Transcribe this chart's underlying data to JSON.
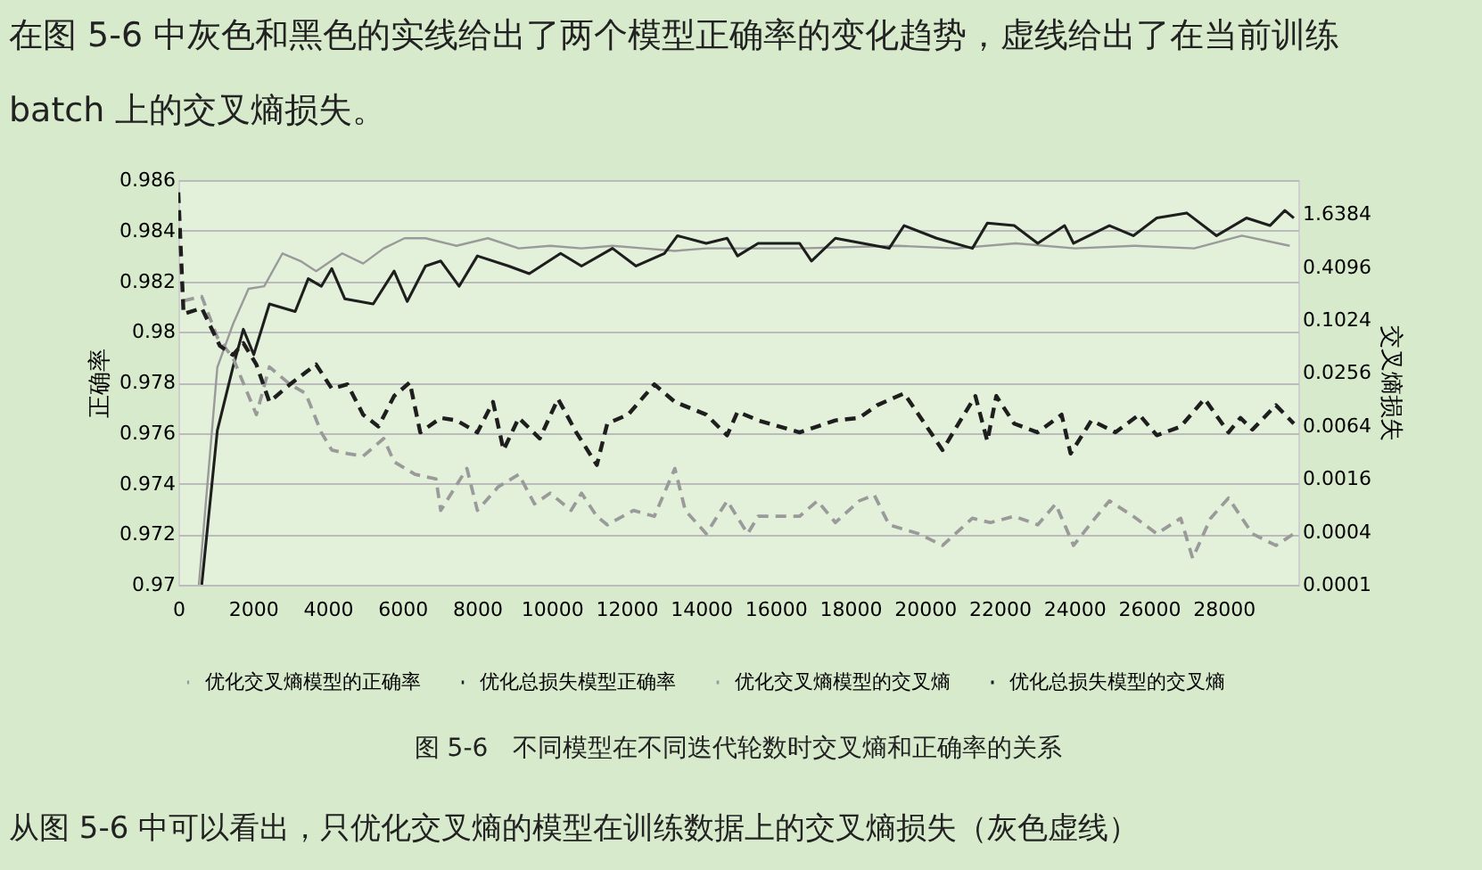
{
  "chart_data": {
    "type": "line",
    "title": "图 5-6　不同模型在不同迭代轮数时交叉熵和正确率的关系",
    "ylabel": "正确率",
    "y2label": "交叉熵损失",
    "annotations": [
      "在图 5-6 中灰色和黑色的实线给出了两个模型正确率的变化趋势，虚线给出了在当前训练 batch 上的交叉熵损失。",
      "从图 5-6 中可以看出，只优化交叉熵的模型在训练数据上的交叉熵损失（灰色虚线）"
    ],
    "xlim": [
      0,
      30000
    ],
    "xticks": [
      0,
      2000,
      4000,
      6000,
      8000,
      10000,
      12000,
      14000,
      16000,
      18000,
      20000,
      22000,
      24000,
      26000,
      28000
    ],
    "ylim": [
      0.97,
      0.986
    ],
    "yticks": [
      0.97,
      0.972,
      0.974,
      0.976,
      0.978,
      0.98,
      0.982,
      0.984,
      0.986
    ],
    "y2lim": [
      0.0001,
      4
    ],
    "y2ticks": [
      0.0001,
      0.0004,
      0.0016,
      0.0064,
      0.0256,
      0.1024,
      0.4096,
      1.6384
    ],
    "log": "y2",
    "grid": "y",
    "legend": "bottom",
    "series": [
      {
        "name": "优化交叉熵模型的正确率",
        "color": "#9a9a9a",
        "line_style": "solid",
        "x": [
          550,
          1045,
          1463,
          1880,
          2300,
          2790,
          3270,
          3690,
          4390,
          4950,
          5500,
          6060,
          6620,
          7450,
          8290,
          9120,
          9960,
          10800,
          11630,
          12470,
          13300,
          14140,
          14980,
          16640,
          19280,
          20830,
          22430,
          24020,
          25620,
          27210,
          28490,
          29770
        ],
        "values": [
          0.97,
          0.9786,
          0.9803,
          0.9817,
          0.9818,
          0.9831,
          0.9828,
          0.9824,
          0.9831,
          0.9827,
          0.9833,
          0.9837,
          0.9837,
          0.9834,
          0.9837,
          0.9833,
          0.9834,
          0.9833,
          0.9834,
          0.9833,
          0.9832,
          0.9833,
          0.9833,
          0.9833,
          0.9834,
          0.9833,
          0.9835,
          0.9833,
          0.9834,
          0.9833,
          0.9838,
          0.9834
        ]
      },
      {
        "name": "优化总损失模型正确率",
        "color": "#1e1e1e",
        "line_style": "solid",
        "x": [
          627,
          1045,
          1463,
          1741,
          2020,
          2440,
          3130,
          3480,
          3830,
          4110,
          4460,
          5220,
          5780,
          6130,
          6620,
          7030,
          7520,
          8010,
          8850,
          9400,
          10240,
          10800,
          11630,
          12260,
          13020,
          13370,
          14140,
          14700,
          14980,
          15530,
          16640,
          16960,
          17600,
          19040,
          19440,
          20310,
          21270,
          21670,
          22390,
          23020,
          23740,
          23980,
          24940,
          25580,
          26210,
          27010,
          27810,
          28610,
          29240,
          29640,
          29880
        ],
        "values": [
          0.97,
          0.9761,
          0.9786,
          0.9801,
          0.9791,
          0.9811,
          0.9808,
          0.9821,
          0.9818,
          0.9825,
          0.9813,
          0.9811,
          0.9824,
          0.9812,
          0.9826,
          0.9828,
          0.9818,
          0.983,
          0.9826,
          0.9823,
          0.9831,
          0.9826,
          0.9833,
          0.9826,
          0.9831,
          0.9838,
          0.9835,
          0.9837,
          0.983,
          0.9835,
          0.9835,
          0.9828,
          0.9837,
          0.9833,
          0.9842,
          0.9837,
          0.9833,
          0.9843,
          0.9842,
          0.9835,
          0.9842,
          0.9835,
          0.9842,
          0.9838,
          0.9845,
          0.9847,
          0.9838,
          0.9845,
          0.9842,
          0.9848,
          0.9845
        ]
      },
      {
        "name": "优化交叉熵模型的交叉熵",
        "color": "#9a9a9a",
        "line_style": "dashed",
        "axis": "y2",
        "x": [
          140,
          627,
          1045,
          1463,
          2090,
          2440,
          2990,
          3410,
          3830,
          4110,
          4530,
          4950,
          5500,
          5780,
          6340,
          6900,
          7030,
          7730,
          8010,
          8570,
          9120,
          9540,
          9960,
          10520,
          10800,
          11210,
          11490,
          12190,
          12750,
          13300,
          13580,
          14140,
          14700,
          15250,
          15530,
          16640,
          17120,
          17600,
          18240,
          18640,
          19040,
          19830,
          20470,
          21270,
          21750,
          22390,
          23020,
          23500,
          23980,
          24460,
          24940,
          25580,
          26210,
          26850,
          27170,
          27650,
          28130,
          28770,
          29400,
          29880
        ],
        "values": [
          0.17,
          0.19,
          0.065,
          0.038,
          0.0086,
          0.03,
          0.019,
          0.015,
          0.0054,
          0.0034,
          0.0031,
          0.0029,
          0.0046,
          0.0025,
          0.0018,
          0.0016,
          0.0007,
          0.0021,
          0.0007,
          0.0013,
          0.0018,
          0.00083,
          0.0011,
          0.0007,
          0.0011,
          0.0006,
          0.00048,
          0.0007,
          0.0006,
          0.0021,
          0.0007,
          0.00038,
          0.0009,
          0.00038,
          0.0006,
          0.0006,
          0.0009,
          0.00051,
          0.0009,
          0.00105,
          0.00048,
          0.00038,
          0.00028,
          0.00057,
          0.00051,
          0.0006,
          0.00048,
          0.00083,
          0.00028,
          0.00051,
          0.0009,
          0.0006,
          0.00038,
          0.00057,
          0.0002,
          0.00057,
          0.00097,
          0.00038,
          0.00028,
          0.00038
        ]
      },
      {
        "name": "优化总损失模型的交叉熵",
        "color": "#1e1e1e",
        "line_style": "dashed",
        "axis": "y2",
        "x": [
          0,
          140,
          627,
          1114,
          1463,
          1741,
          2090,
          2440,
          2990,
          3410,
          3690,
          4110,
          4530,
          4950,
          5360,
          5780,
          6200,
          6480,
          7030,
          7450,
          8010,
          8430,
          8710,
          9120,
          9680,
          10170,
          10660,
          11210,
          11490,
          12050,
          12750,
          13300,
          14140,
          14700,
          14980,
          15530,
          16640,
          17600,
          18240,
          18720,
          19440,
          19830,
          20470,
          20950,
          21350,
          21670,
          21910,
          22390,
          23020,
          23660,
          23900,
          24460,
          25100,
          25740,
          26210,
          26850,
          27490,
          28130,
          28450,
          28770,
          29400,
          29880
        ],
        "values": [
          2.9,
          0.12,
          0.14,
          0.052,
          0.041,
          0.056,
          0.032,
          0.012,
          0.019,
          0.026,
          0.032,
          0.017,
          0.019,
          0.0086,
          0.0063,
          0.014,
          0.02,
          0.0054,
          0.0079,
          0.0074,
          0.0054,
          0.012,
          0.0034,
          0.0079,
          0.0046,
          0.013,
          0.0054,
          0.0023,
          0.0068,
          0.0086,
          0.019,
          0.012,
          0.0086,
          0.005,
          0.0093,
          0.0074,
          0.0054,
          0.0074,
          0.0079,
          0.011,
          0.015,
          0.0086,
          0.0034,
          0.0074,
          0.014,
          0.0043,
          0.014,
          0.0068,
          0.0054,
          0.0086,
          0.0031,
          0.0074,
          0.0054,
          0.0086,
          0.005,
          0.0063,
          0.013,
          0.0054,
          0.0079,
          0.0058,
          0.011,
          0.0068
        ]
      }
    ]
  }
}
